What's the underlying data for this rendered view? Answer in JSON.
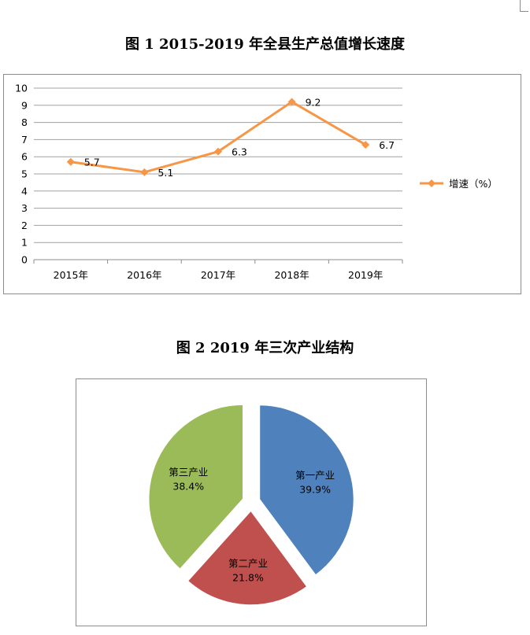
{
  "figure1": {
    "title": "图 1   2015-2019 年全县生产总值增长速度"
  },
  "figure2": {
    "title": "图 2       2019 年三次产业结构"
  },
  "chart_data": [
    {
      "type": "line",
      "title": "图 1   2015-2019 年全县生产总值增长速度",
      "categories": [
        "2015年",
        "2016年",
        "2017年",
        "2018年",
        "2019年"
      ],
      "series": [
        {
          "name": "增速（%）",
          "values": [
            5.7,
            5.1,
            6.3,
            9.2,
            6.7
          ],
          "color": "#F79646"
        }
      ],
      "data_labels": [
        "5.7",
        "5.1",
        "6.3",
        "9.2",
        "6.7"
      ],
      "ylim": [
        0,
        10
      ],
      "yticks": [
        0,
        1,
        2,
        3,
        4,
        5,
        6,
        7,
        8,
        9,
        10
      ],
      "xlabel": "",
      "ylabel": "",
      "grid": true,
      "legend": "right",
      "marker": "diamond"
    },
    {
      "type": "pie",
      "title": "图 2       2019 年三次产业结构",
      "slices": [
        {
          "label": "第一产业",
          "value": 39.9,
          "value_label": "39.9%",
          "color": "#4F81BD"
        },
        {
          "label": "第二产业",
          "value": 21.8,
          "value_label": "21.8%",
          "color": "#C0504D"
        },
        {
          "label": "第三产业",
          "value": 38.4,
          "value_label": "38.4%",
          "color": "#9BBB59"
        }
      ],
      "exploded": true,
      "legend": "none"
    }
  ]
}
